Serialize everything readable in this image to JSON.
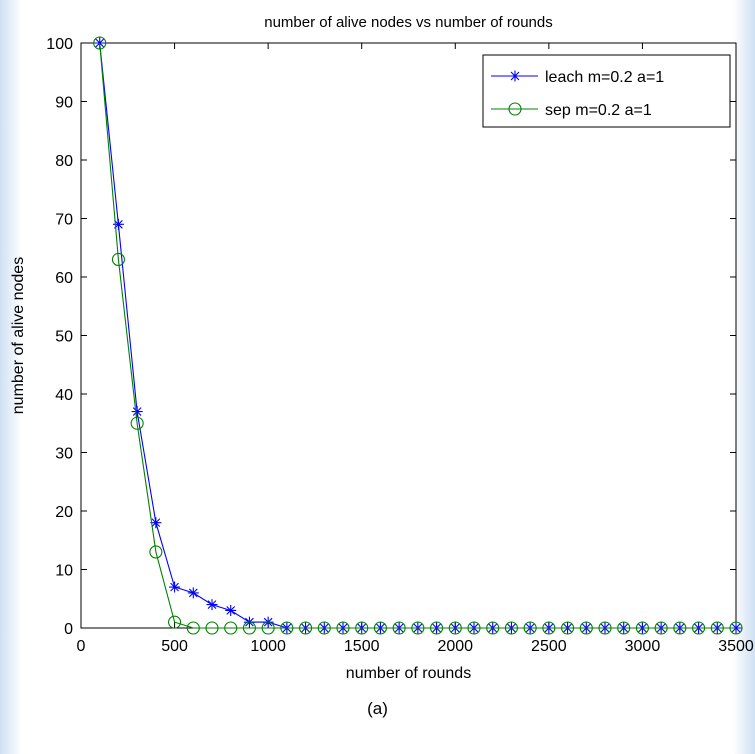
{
  "caption": "(a)",
  "chart_data": {
    "type": "line",
    "title": "number of alive nodes vs number of rounds",
    "xlabel": "number of rounds",
    "ylabel": "number of alive nodes",
    "xlim": [
      0,
      3500
    ],
    "ylim": [
      0,
      100
    ],
    "xticks": [
      0,
      500,
      1000,
      1500,
      2000,
      2500,
      3000,
      3500
    ],
    "yticks": [
      0,
      10,
      20,
      30,
      40,
      50,
      60,
      70,
      80,
      90,
      100
    ],
    "grid": false,
    "legend_position": "top-right",
    "x": [
      100,
      200,
      300,
      400,
      500,
      600,
      700,
      800,
      900,
      1000,
      1100,
      1200,
      1300,
      1400,
      1500,
      1600,
      1700,
      1800,
      1900,
      2000,
      2100,
      2200,
      2300,
      2400,
      2500,
      2600,
      2700,
      2800,
      2900,
      3000,
      3100,
      3200,
      3300,
      3400,
      3500
    ],
    "series": [
      {
        "name": "leach m=0.2 a=1",
        "color": "#0000ff",
        "marker": "star",
        "values": [
          100,
          69,
          37,
          18,
          7,
          6,
          4,
          3,
          1,
          1,
          0,
          0,
          0,
          0,
          0,
          0,
          0,
          0,
          0,
          0,
          0,
          0,
          0,
          0,
          0,
          0,
          0,
          0,
          0,
          0,
          0,
          0,
          0,
          0,
          0
        ]
      },
      {
        "name": "sep m=0.2 a=1",
        "color": "#008000",
        "marker": "circle",
        "values": [
          100,
          63,
          35,
          13,
          1,
          0,
          0,
          0,
          0,
          0,
          0,
          0,
          0,
          0,
          0,
          0,
          0,
          0,
          0,
          0,
          0,
          0,
          0,
          0,
          0,
          0,
          0,
          0,
          0,
          0,
          0,
          0,
          0,
          0,
          0
        ]
      }
    ]
  }
}
